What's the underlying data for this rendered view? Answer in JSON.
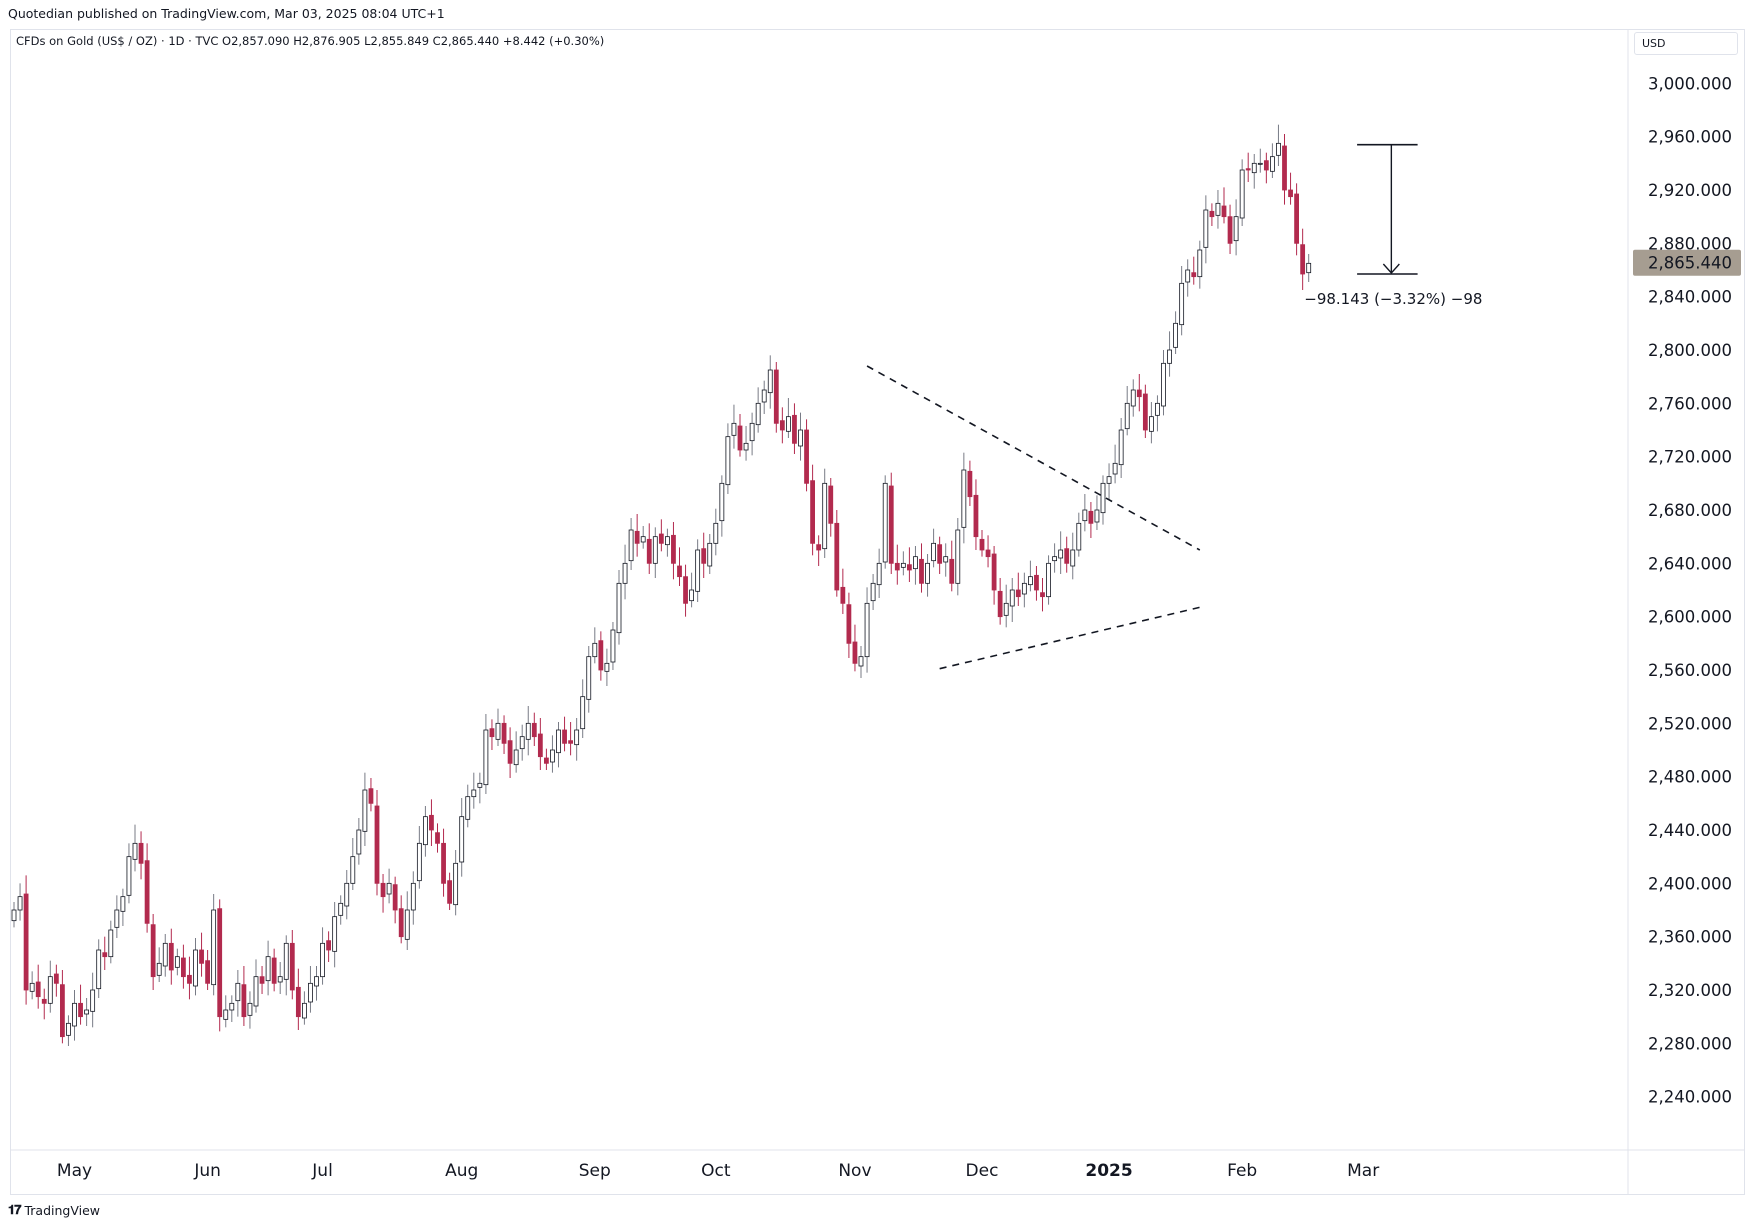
{
  "header": {
    "published_by": "Quotedian published on TradingView.com, Mar 03, 2025 08:04 UTC+1"
  },
  "chart_title": "CFDs on Gold (US$ / OZ) · 1D · TVC  O2,857.090  H2,876.905  L2,855.849  C2,865.440  +8.442 (+0.30%)",
  "currency": "USD",
  "footer": {
    "logo_text": "TradingView"
  },
  "colors": {
    "up": "#787b86",
    "down": "#b22a4e",
    "last_price_bg": "#a69d91"
  },
  "chart_data": {
    "type": "candlestick",
    "symbol": "CFDs on Gold (US$ / OZ)",
    "interval": "1D",
    "ylim": [
      2200,
      3040
    ],
    "yticks": [
      2240,
      2280,
      2320,
      2360,
      2400,
      2440,
      2480,
      2520,
      2560,
      2600,
      2640,
      2680,
      2720,
      2760,
      2800,
      2840,
      2880,
      2920,
      2960,
      3000
    ],
    "ytick_labels": [
      "2,240.000",
      "2,280.000",
      "2,320.000",
      "2,360.000",
      "2,400.000",
      "2,440.000",
      "2,480.000",
      "2,520.000",
      "2,560.000",
      "2,600.000",
      "2,640.000",
      "2,680.000",
      "2,720.000",
      "2,760.000",
      "2,800.000",
      "2,840.000",
      "2,880.000",
      "2,920.000",
      "2,960.000",
      "3,000.000"
    ],
    "x_months": [
      {
        "label": "May",
        "index": 10,
        "bold": false
      },
      {
        "label": "Jun",
        "index": 32,
        "bold": false
      },
      {
        "label": "Jul",
        "index": 51,
        "bold": false
      },
      {
        "label": "Aug",
        "index": 74,
        "bold": false
      },
      {
        "label": "Sep",
        "index": 96,
        "bold": false
      },
      {
        "label": "Oct",
        "index": 116,
        "bold": false
      },
      {
        "label": "Nov",
        "index": 139,
        "bold": false
      },
      {
        "label": "Dec",
        "index": 160,
        "bold": false
      },
      {
        "label": "2025",
        "index": 181,
        "bold": true
      },
      {
        "label": "Feb",
        "index": 203,
        "bold": false
      },
      {
        "label": "Mar",
        "index": 223,
        "bold": false
      }
    ],
    "last_price": 2865.44,
    "last_price_label": "2,865.440",
    "measure_label": "−98.143 (−3.32%) −98",
    "closes": [
      2380,
      2390,
      2320,
      2325,
      2315,
      2310,
      2330,
      2325,
      2285,
      2295,
      2310,
      2300,
      2305,
      2320,
      2350,
      2345,
      2365,
      2380,
      2390,
      2420,
      2430,
      2415,
      2370,
      2330,
      2340,
      2355,
      2335,
      2345,
      2330,
      2325,
      2350,
      2340,
      2325,
      2380,
      2300,
      2305,
      2310,
      2325,
      2300,
      2310,
      2330,
      2325,
      2345,
      2325,
      2330,
      2355,
      2320,
      2300,
      2310,
      2325,
      2330,
      2355,
      2350,
      2375,
      2385,
      2400,
      2420,
      2440,
      2470,
      2460,
      2400,
      2390,
      2400,
      2380,
      2360,
      2380,
      2400,
      2430,
      2450,
      2440,
      2430,
      2400,
      2385,
      2415,
      2450,
      2465,
      2470,
      2475,
      2515,
      2510,
      2520,
      2505,
      2490,
      2500,
      2510,
      2520,
      2510,
      2495,
      2490,
      2500,
      2515,
      2505,
      2505,
      2515,
      2540,
      2570,
      2580,
      2560,
      2565,
      2590,
      2625,
      2640,
      2665,
      2655,
      2660,
      2640,
      2660,
      2655,
      2660,
      2640,
      2630,
      2610,
      2620,
      2650,
      2640,
      2655,
      2670,
      2700,
      2735,
      2745,
      2725,
      2730,
      2745,
      2760,
      2770,
      2785,
      2745,
      2740,
      2750,
      2730,
      2740,
      2700,
      2655,
      2650,
      2700,
      2670,
      2620,
      2610,
      2580,
      2565,
      2570,
      2610,
      2625,
      2640,
      2700,
      2640,
      2635,
      2640,
      2635,
      2645,
      2625,
      2640,
      2655,
      2640,
      2645,
      2625,
      2665,
      2710,
      2690,
      2660,
      2650,
      2645,
      2620,
      2600,
      2610,
      2620,
      2615,
      2625,
      2630,
      2620,
      2615,
      2640,
      2645,
      2650,
      2640,
      2650,
      2670,
      2680,
      2670,
      2680,
      2700,
      2705,
      2715,
      2740,
      2760,
      2770,
      2765,
      2740,
      2750,
      2760,
      2790,
      2800,
      2820,
      2850,
      2860,
      2855,
      2875,
      2905,
      2900,
      2910,
      2900,
      2880,
      2900,
      2935,
      2935,
      2940,
      2940,
      2935,
      2945,
      2955,
      2920,
      2915,
      2880,
      2857,
      2865
    ]
  }
}
